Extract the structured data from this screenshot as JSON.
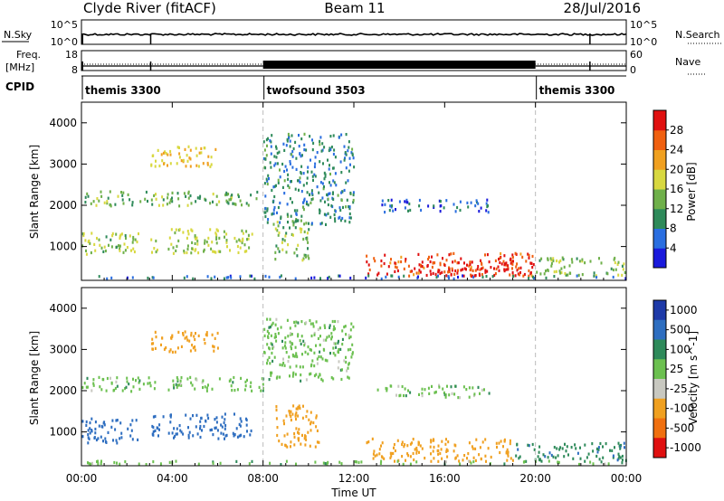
{
  "header": {
    "station": "Clyde River (fitACF)",
    "beam": "Beam 11",
    "date": "28/Jul/2016"
  },
  "top_panels": {
    "nsky_label": "N.Sky",
    "nsky_ticks": [
      "10^5",
      "10^0"
    ],
    "nsearch_label": "N.Search",
    "nsearch_ticks": [
      "10^5",
      "10^0"
    ],
    "freq_label_1": "Freq.",
    "freq_label_2": "[MHz]",
    "freq_ticks": [
      "18",
      "8"
    ],
    "nave_label": "Nave",
    "nave_ticks": [
      "60",
      "0"
    ],
    "cpid_label": "CPID",
    "cpid_segments": [
      {
        "label": "themis 3300",
        "start_hour": 0,
        "end_hour": 8
      },
      {
        "label": "twofsound 3503",
        "start_hour": 8,
        "end_hour": 20
      },
      {
        "label": "themis 3300",
        "start_hour": 20,
        "end_hour": 24
      }
    ]
  },
  "chart_data": [
    {
      "type": "heatmap",
      "panel": "power",
      "ylabel": "Slant Range [km]",
      "xlim_hours": [
        0,
        24
      ],
      "ylim": [
        180,
        4500
      ],
      "yticks": [
        "1000",
        "2000",
        "3000",
        "4000"
      ],
      "colorbar_label": "Power [dB]",
      "colorbar_ticks": [
        "4",
        "8",
        "12",
        "16",
        "20",
        "24",
        "28"
      ],
      "colorbar_colors": [
        "#1a1adc",
        "#2a6ee0",
        "#2e8a5a",
        "#6fb04a",
        "#d8d840",
        "#f0a020",
        "#f06010",
        "#e01010"
      ],
      "clim": [
        0,
        32
      ],
      "scatter_regions": [
        {
          "t0": 0.0,
          "t1": 8.0,
          "r0": 1950,
          "r1": 2300,
          "val": 13
        },
        {
          "t0": 0.0,
          "t1": 2.5,
          "r0": 700,
          "r1": 1300,
          "val": 15
        },
        {
          "t0": 3.0,
          "t1": 6.0,
          "r0": 2900,
          "r1": 3400,
          "val": 20
        },
        {
          "t0": 3.0,
          "t1": 7.5,
          "r0": 800,
          "r1": 1400,
          "val": 16
        },
        {
          "t0": 8.0,
          "t1": 12.0,
          "r0": 1500,
          "r1": 3700,
          "val": 9
        },
        {
          "t0": 8.5,
          "t1": 10.0,
          "r0": 600,
          "r1": 1600,
          "val": 14
        },
        {
          "t0": 13.0,
          "t1": 18.0,
          "r0": 1800,
          "r1": 2100,
          "val": 6
        },
        {
          "t0": 12.5,
          "t1": 20.0,
          "r0": 250,
          "r1": 800,
          "val": 27
        },
        {
          "t0": 14.5,
          "t1": 19.0,
          "r0": 250,
          "r1": 600,
          "val": 30
        },
        {
          "t0": 20.0,
          "t1": 24.0,
          "r0": 250,
          "r1": 700,
          "val": 15
        },
        {
          "t0": 0.0,
          "t1": 24.0,
          "r0": 180,
          "r1": 260,
          "val": 7
        }
      ]
    },
    {
      "type": "heatmap",
      "panel": "velocity",
      "ylabel": "Slant Range [km]",
      "xlabel": "Time UT",
      "xticks": [
        "00:00",
        "04:00",
        "08:00",
        "12:00",
        "16:00",
        "20:00",
        "00:00"
      ],
      "xlim_hours": [
        0,
        24
      ],
      "ylim": [
        180,
        4500
      ],
      "yticks": [
        "1000",
        "2000",
        "3000",
        "4000"
      ],
      "colorbar_label": "Velocity [m s^-1]",
      "colorbar_ticks": [
        "1000",
        "500",
        "100",
        "25",
        "-25",
        "-100",
        "-500",
        "-1000"
      ],
      "colorbar_colors": [
        "#1e3aa8",
        "#2e6ec0",
        "#2e8a5a",
        "#6cc050",
        "#c8c8c0",
        "#f0a020",
        "#f07010",
        "#e01010"
      ],
      "scatter_regions": [
        {
          "t0": 0.0,
          "t1": 8.0,
          "r0": 1950,
          "r1": 2300,
          "val": 0
        },
        {
          "t0": 0.0,
          "t1": 2.5,
          "r0": 700,
          "r1": 1300,
          "val": 150
        },
        {
          "t0": 3.0,
          "t1": 6.0,
          "r0": 2900,
          "r1": 3400,
          "val": -300
        },
        {
          "t0": 3.0,
          "t1": 7.5,
          "r0": 800,
          "r1": 1400,
          "val": 150
        },
        {
          "t0": 8.0,
          "t1": 12.0,
          "r0": 2200,
          "r1": 3700,
          "val": 0
        },
        {
          "t0": 8.5,
          "t1": 10.5,
          "r0": 600,
          "r1": 1600,
          "val": -300
        },
        {
          "t0": 13.0,
          "t1": 18.0,
          "r0": 1800,
          "r1": 2100,
          "val": 0
        },
        {
          "t0": 12.5,
          "t1": 19.0,
          "r0": 250,
          "r1": 800,
          "val": -300
        },
        {
          "t0": 19.0,
          "t1": 24.0,
          "r0": 250,
          "r1": 700,
          "val": 80
        },
        {
          "t0": 0.0,
          "t1": 24.0,
          "r0": 180,
          "r1": 260,
          "val": 0
        }
      ]
    }
  ]
}
